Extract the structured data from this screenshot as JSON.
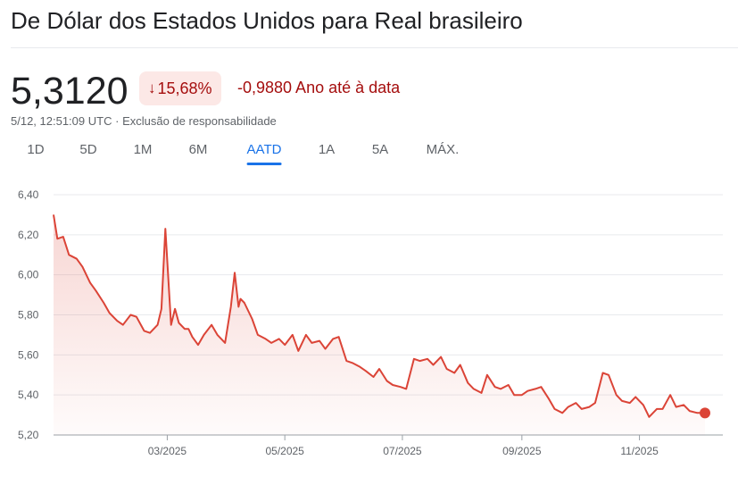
{
  "header": {
    "title": "De Dólar dos Estados Unidos para Real brasileiro"
  },
  "quote": {
    "price": "5,3120",
    "percent_change": "15,68%",
    "change_arrow_icon": "arrow-down-icon",
    "change_text": "-0,9880 Ano até à data",
    "timestamp": "5/12, 12:51:09 UTC",
    "separator": "·",
    "disclaimer": "Exclusão de responsabilidade"
  },
  "colors": {
    "accent": "#1a73e8",
    "negative": "#a50e0e",
    "negative_bg": "#fce8e6",
    "line": "#db4437"
  },
  "tabs": [
    {
      "label": "1D",
      "active": false
    },
    {
      "label": "5D",
      "active": false
    },
    {
      "label": "1M",
      "active": false
    },
    {
      "label": "6M",
      "active": false
    },
    {
      "label": "AATD",
      "active": true
    },
    {
      "label": "1A",
      "active": false
    },
    {
      "label": "5A",
      "active": false
    },
    {
      "label": "MÁX.",
      "active": false
    }
  ],
  "chart_data": {
    "type": "area",
    "title": "",
    "xlabel": "",
    "ylabel": "",
    "ylim": [
      5.2,
      6.4
    ],
    "y_ticks": [
      6.4,
      6.2,
      6.0,
      5.8,
      5.6,
      5.4,
      5.2
    ],
    "y_tick_labels": [
      "6,40",
      "6,20",
      "6,00",
      "5,80",
      "5,60",
      "5,40",
      "5,20"
    ],
    "x_ticks": [
      {
        "date": "2025-03-01",
        "label": "03/2025"
      },
      {
        "date": "2025-05-01",
        "label": "05/2025"
      },
      {
        "date": "2025-07-01",
        "label": "07/2025"
      },
      {
        "date": "2025-09-01",
        "label": "09/2025"
      },
      {
        "date": "2025-11-01",
        "label": "11/2025"
      }
    ],
    "x_range": [
      "2025-01-01",
      "2025-12-05"
    ],
    "grid": true,
    "series": [
      {
        "x": [
          "2025-01-01",
          "2025-01-03",
          "2025-01-06",
          "2025-01-09",
          "2025-01-13",
          "2025-01-16",
          "2025-01-20",
          "2025-01-23",
          "2025-01-27",
          "2025-01-30",
          "2025-02-03",
          "2025-02-06",
          "2025-02-10",
          "2025-02-13",
          "2025-02-17",
          "2025-02-20",
          "2025-02-24",
          "2025-02-26",
          "2025-02-28",
          "2025-03-03",
          "2025-03-05",
          "2025-03-07",
          "2025-03-10",
          "2025-03-12",
          "2025-03-14",
          "2025-03-17",
          "2025-03-20",
          "2025-03-24",
          "2025-03-27",
          "2025-03-31",
          "2025-04-03",
          "2025-04-05",
          "2025-04-07",
          "2025-04-08",
          "2025-04-10",
          "2025-04-14",
          "2025-04-17",
          "2025-04-21",
          "2025-04-24",
          "2025-04-28",
          "2025-05-01",
          "2025-05-05",
          "2025-05-08",
          "2025-05-12",
          "2025-05-15",
          "2025-05-19",
          "2025-05-22",
          "2025-05-26",
          "2025-05-29",
          "2025-06-02",
          "2025-06-05",
          "2025-06-09",
          "2025-06-12",
          "2025-06-16",
          "2025-06-19",
          "2025-06-23",
          "2025-06-26",
          "2025-06-30",
          "2025-07-03",
          "2025-07-07",
          "2025-07-10",
          "2025-07-14",
          "2025-07-17",
          "2025-07-21",
          "2025-07-24",
          "2025-07-28",
          "2025-07-31",
          "2025-08-04",
          "2025-08-07",
          "2025-08-11",
          "2025-08-14",
          "2025-08-18",
          "2025-08-21",
          "2025-08-25",
          "2025-08-28",
          "2025-09-01",
          "2025-09-04",
          "2025-09-08",
          "2025-09-11",
          "2025-09-15",
          "2025-09-18",
          "2025-09-22",
          "2025-09-25",
          "2025-09-29",
          "2025-10-02",
          "2025-10-06",
          "2025-10-09",
          "2025-10-13",
          "2025-10-16",
          "2025-10-20",
          "2025-10-23",
          "2025-10-27",
          "2025-10-30",
          "2025-11-03",
          "2025-11-06",
          "2025-11-10",
          "2025-11-13",
          "2025-11-17",
          "2025-11-20",
          "2025-11-24",
          "2025-11-27",
          "2025-12-01",
          "2025-12-05"
        ],
        "values": [
          6.3,
          6.18,
          6.19,
          6.1,
          6.08,
          6.04,
          5.96,
          5.92,
          5.86,
          5.81,
          5.77,
          5.75,
          5.8,
          5.79,
          5.72,
          5.71,
          5.75,
          5.83,
          6.23,
          5.75,
          5.83,
          5.76,
          5.73,
          5.73,
          5.69,
          5.65,
          5.7,
          5.75,
          5.7,
          5.66,
          5.84,
          6.01,
          5.84,
          5.88,
          5.86,
          5.78,
          5.7,
          5.68,
          5.66,
          5.68,
          5.65,
          5.7,
          5.62,
          5.7,
          5.66,
          5.67,
          5.63,
          5.68,
          5.69,
          5.57,
          5.56,
          5.54,
          5.52,
          5.49,
          5.53,
          5.47,
          5.45,
          5.44,
          5.43,
          5.58,
          5.57,
          5.58,
          5.55,
          5.59,
          5.53,
          5.51,
          5.55,
          5.46,
          5.43,
          5.41,
          5.5,
          5.44,
          5.43,
          5.45,
          5.4,
          5.4,
          5.42,
          5.43,
          5.44,
          5.38,
          5.33,
          5.31,
          5.34,
          5.36,
          5.33,
          5.34,
          5.36,
          5.51,
          5.5,
          5.4,
          5.37,
          5.36,
          5.39,
          5.35,
          5.29,
          5.33,
          5.33,
          5.4,
          5.34,
          5.35,
          5.32,
          5.31,
          5.31
        ]
      }
    ]
  }
}
